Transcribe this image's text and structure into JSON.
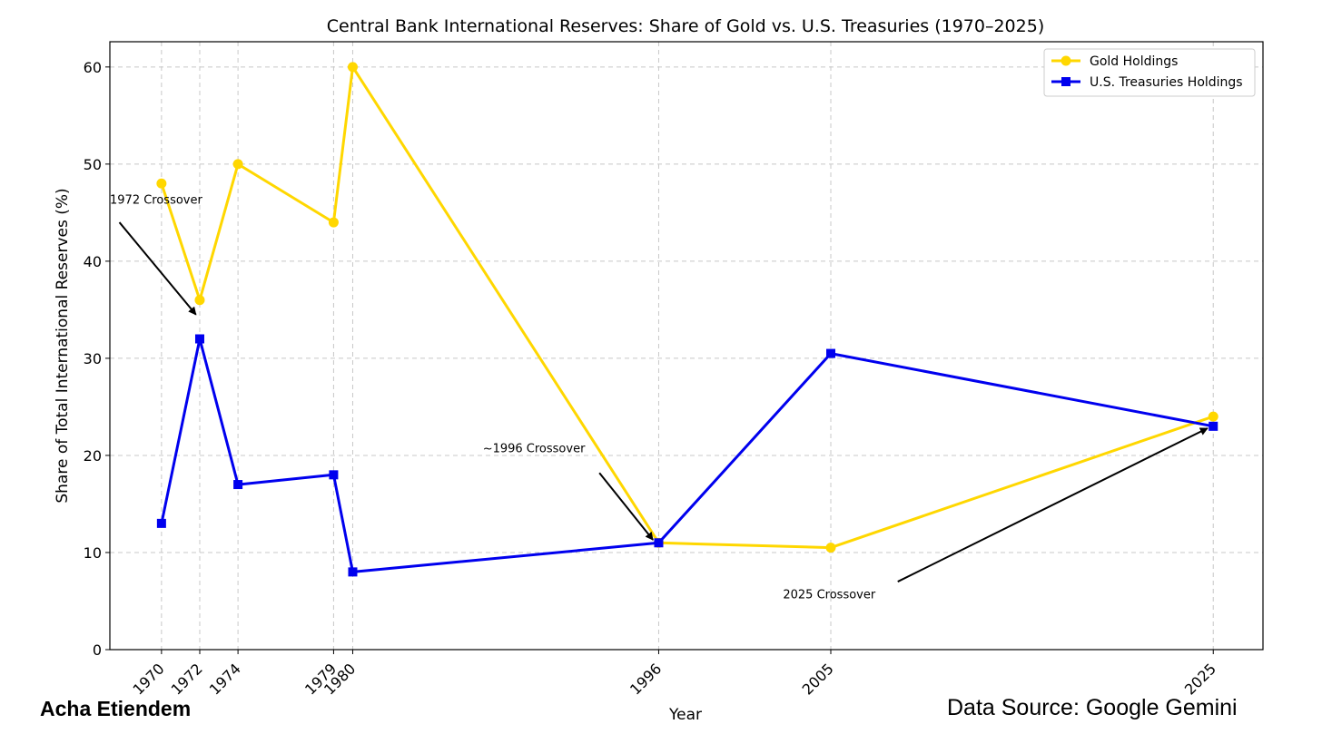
{
  "chart_data": {
    "type": "line",
    "title": "Central Bank International Reserves: Share of Gold vs. U.S. Treasuries (1970–2025)",
    "xlabel": "Year",
    "ylabel": "Share of Total International Reserves (%)",
    "x": [
      1970,
      1972,
      1974,
      1979,
      1980,
      1996,
      2005,
      2025
    ],
    "x_tick_labels": [
      "1970",
      "1972",
      "1974",
      "1979",
      "1980",
      "1996",
      "2005",
      "2025"
    ],
    "xlim": [
      1967.3,
      2027.6
    ],
    "ylim": [
      0,
      62.6
    ],
    "y_ticks": [
      0,
      10,
      20,
      30,
      40,
      50,
      60
    ],
    "grid": true,
    "legend_position": "top-right",
    "series": [
      {
        "name": "Gold Holdings",
        "color": "#FFD700",
        "marker": "circle",
        "values": [
          48,
          36,
          50,
          44,
          60,
          11,
          10.5,
          24
        ]
      },
      {
        "name": "U.S. Treasuries Holdings",
        "color": "#0000EE",
        "marker": "square",
        "values": [
          13,
          32,
          17,
          18,
          8,
          11,
          30.5,
          23
        ]
      }
    ],
    "annotations": [
      {
        "text": "1972 Crossover",
        "text_xy": [
          1967.3,
          45.9
        ],
        "arrow_from": [
          1967.8,
          44
        ],
        "arrow_to": [
          1971.8,
          34.5
        ]
      },
      {
        "text": "~1996 Crossover",
        "text_xy": [
          1986.8,
          20.3
        ],
        "arrow_from": [
          1992.9,
          18.2
        ],
        "arrow_to": [
          1995.7,
          11.3
        ]
      },
      {
        "text": "2025 Crossover",
        "text_xy": [
          2002.5,
          5.3
        ],
        "arrow_from": [
          2008.5,
          7
        ],
        "arrow_to": [
          2024.7,
          22.8
        ]
      }
    ]
  },
  "footer": {
    "author": "Acha Etiendem",
    "source": "Data Source: Google Gemini"
  }
}
